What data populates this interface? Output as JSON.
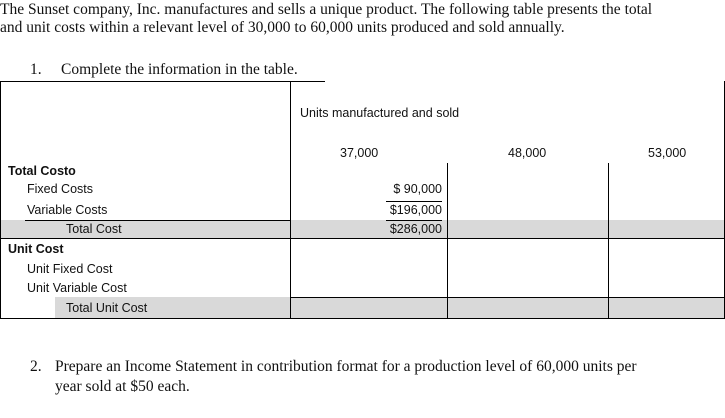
{
  "intro": {
    "line1": "The Sunset company, Inc. manufactures and sells a unique product. The following table presents the total",
    "line2": "and unit costs within a relevant level of 30,000 to 60,000 units produced and sold annually."
  },
  "question1": {
    "number": "1.",
    "text": "Complete the information in the table."
  },
  "table": {
    "header_caption": "Units manufactured and sold",
    "columns": [
      "37,000",
      "48,000",
      "53,000"
    ],
    "total_cost_section": {
      "heading": "Total Costo",
      "rows": [
        {
          "label": "Fixed Costs",
          "values": [
            "$ 90,000",
            "",
            ""
          ]
        },
        {
          "label": "Variable Costs",
          "values": [
            "$196,000",
            "",
            ""
          ]
        },
        {
          "label": "Total Cost",
          "values": [
            "$286,000",
            "",
            ""
          ]
        }
      ]
    },
    "unit_cost_section": {
      "heading": "Unit Cost",
      "rows": [
        {
          "label": "Unit Fixed Cost",
          "values": [
            "",
            "",
            ""
          ]
        },
        {
          "label": "Unit Variable Cost",
          "values": [
            "",
            "",
            ""
          ]
        },
        {
          "label": "Total Unit Cost",
          "values": [
            "",
            "",
            ""
          ]
        }
      ]
    }
  },
  "question2": {
    "number": "2.",
    "line1": "Prepare an Income Statement in contribution format for a production level of 60,000 units per",
    "line2": "year sold at $50 each."
  }
}
